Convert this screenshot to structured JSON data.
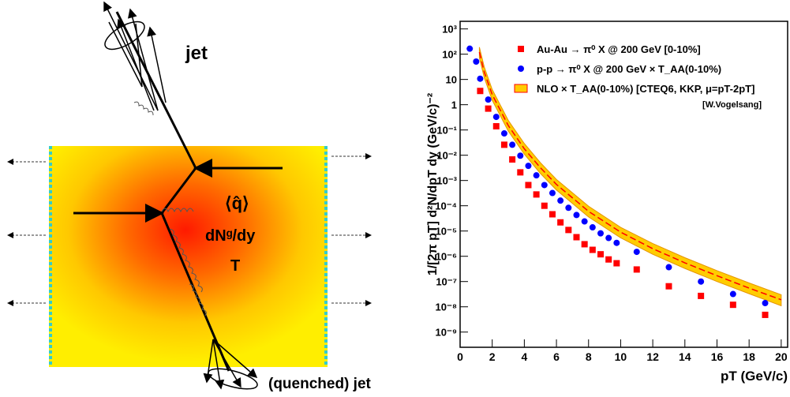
{
  "diagram": {
    "jet_top": "jet",
    "qhat": "⟨q̂⟩",
    "dndy": "dNᵍ/dy",
    "temperature": "T",
    "jet_bottom": "(quenched) jet"
  },
  "chart_data": {
    "type": "scatter",
    "x_label": "pT (GeV/c)",
    "y_label": "1/[2π pT] d²N/dpT dy (GeV/c)⁻²",
    "annotation": "[W.Vogelsang]",
    "xlim": [
      0,
      20.4
    ],
    "xticks": [
      0,
      2,
      4,
      6,
      8,
      10,
      12,
      14,
      16,
      18,
      20
    ],
    "ylim": [
      2.5e-10,
      2000
    ],
    "log_y": true,
    "yticks": [
      {
        "value": 1000,
        "label": "10³"
      },
      {
        "value": 100,
        "label": "10²"
      },
      {
        "value": 10,
        "label": "10"
      },
      {
        "value": 1,
        "label": "1"
      },
      {
        "value": 0.1,
        "label": "10⁻¹"
      },
      {
        "value": 0.01,
        "label": "10⁻²"
      },
      {
        "value": 0.001,
        "label": "10⁻³"
      },
      {
        "value": 0.0001,
        "label": "10⁻⁴"
      },
      {
        "value": 1e-05,
        "label": "10⁻⁵"
      },
      {
        "value": 1e-06,
        "label": "10⁻⁶"
      },
      {
        "value": 1e-07,
        "label": "10⁻⁷"
      },
      {
        "value": 1e-08,
        "label": "10⁻⁸"
      },
      {
        "value": 1e-09,
        "label": "10⁻⁹"
      }
    ],
    "series": [
      {
        "name": "Au-Au → π⁰ X @ 200 GeV [0-10%]",
        "color": "#ff0000",
        "marker": "square",
        "x": [
          1.25,
          1.75,
          2.25,
          2.75,
          3.25,
          3.75,
          4.25,
          4.75,
          5.25,
          5.75,
          6.25,
          6.75,
          7.25,
          7.75,
          8.25,
          8.75,
          9.25,
          9.75,
          11,
          13,
          15,
          17,
          19
        ],
        "values": [
          3.5,
          0.7,
          0.14,
          0.026,
          0.0068,
          0.0021,
          0.00066,
          0.00028,
          0.0001,
          4.6e-05,
          2.2e-05,
          1.1e-05,
          5.7e-06,
          3e-06,
          1.8e-06,
          1.2e-06,
          7.5e-07,
          5.3e-07,
          3e-07,
          6.5e-08,
          2.7e-08,
          1.2e-08,
          4.8e-09
        ]
      },
      {
        "name": "p-p → π⁰ X @ 200 GeV × T_AA(0-10%)",
        "color": "#0000ff",
        "marker": "circle",
        "x": [
          0.6,
          1.0,
          1.25,
          1.75,
          2.25,
          2.75,
          3.25,
          3.75,
          4.25,
          4.75,
          5.25,
          5.75,
          6.25,
          6.75,
          7.25,
          7.75,
          8.25,
          8.75,
          9.25,
          9.75,
          11,
          13,
          15,
          17,
          19
        ],
        "values": [
          165,
          51,
          10.7,
          1.6,
          0.33,
          0.073,
          0.026,
          0.0096,
          0.0038,
          0.0016,
          0.00066,
          0.00032,
          0.00016,
          8.3e-05,
          4.3e-05,
          2.4e-05,
          1.4e-05,
          8.1e-06,
          5.3e-06,
          3.4e-06,
          1.5e-06,
          3.7e-07,
          1e-07,
          3.2e-08,
          1.4e-08
        ]
      },
      {
        "name": "NLO × T_AA(0-10%) [CTEQ6, KKP, μ=pT-2pT]",
        "color": "#ff0000",
        "band_color": "#ffcc00",
        "marker": "band",
        "x": [
          1.2,
          1.5,
          2,
          3,
          4,
          5,
          6,
          8,
          10,
          12,
          14,
          16,
          18,
          20
        ],
        "values": [
          120,
          20,
          2.5,
          0.15,
          0.018,
          0.0032,
          0.0007,
          6e-05,
          9e-06,
          2e-06,
          5.5e-07,
          1.7e-07,
          5.5e-08,
          1.9e-08
        ],
        "lower": [
          72,
          12,
          1.5,
          0.09,
          0.011,
          0.0019,
          0.00042,
          3.6e-05,
          5.4e-06,
          1.2e-06,
          3.3e-07,
          1e-07,
          3.3e-08,
          1.1e-08
        ],
        "upper": [
          190,
          32,
          4,
          0.24,
          0.029,
          0.0051,
          0.0011,
          9.6e-05,
          1.4e-05,
          3.2e-06,
          8.8e-07,
          2.7e-07,
          8.8e-08,
          3e-08
        ]
      }
    ]
  }
}
